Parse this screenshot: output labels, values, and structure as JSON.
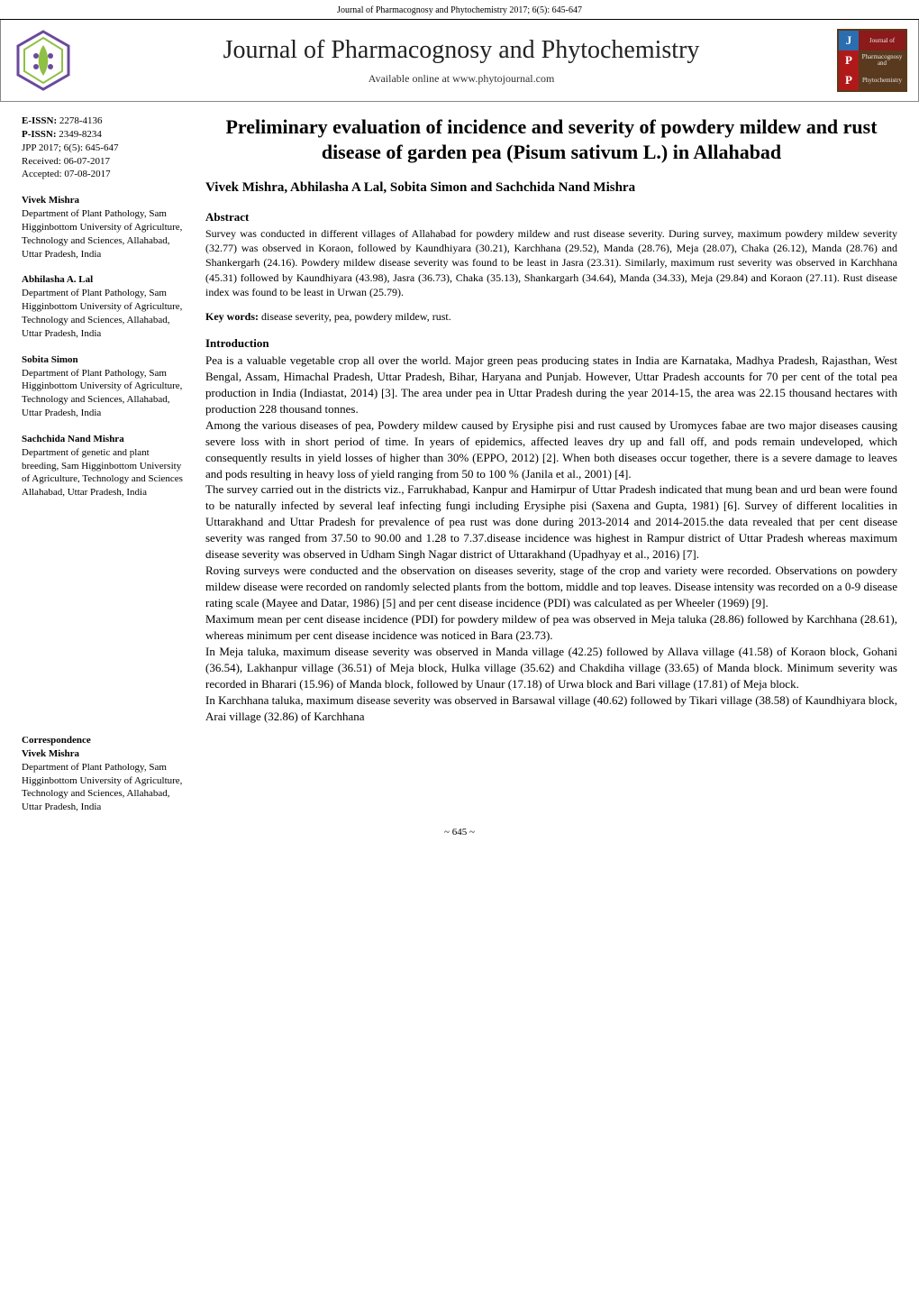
{
  "header_line": "Journal of Pharmacognosy and Phytochemistry 2017; 6(5): 645-647",
  "banner": {
    "title": "Journal of Pharmacognosy and Phytochemistry",
    "subtitle": "Available online at  www.phytojournal.com",
    "logo_colors": {
      "outer": "#6a4a9c",
      "inner": "#8fc043"
    },
    "badge": {
      "rows": [
        {
          "letter": "J",
          "letter_bg": "#2a6db0",
          "word": "Journal of",
          "word_bg": "#8b1a1a"
        },
        {
          "letter": "P",
          "letter_bg": "#b01919",
          "word": "Pharmacognosy and",
          "word_bg": "#5a3a1e"
        },
        {
          "letter": "P",
          "letter_bg": "#b01919",
          "word": "Phytochemistry",
          "word_bg": "#5a3a1e"
        }
      ]
    }
  },
  "meta": {
    "eissn_label": "E-ISSN:",
    "eissn": "2278-4136",
    "pissn_label": "P-ISSN:",
    "pissn": "2349-8234",
    "jpp_line": "JPP 2017; 6(5): 645-647",
    "received": "Received: 06-07-2017",
    "accepted": "Accepted: 07-08-2017"
  },
  "sidebar_authors": [
    {
      "name": "Vivek Mishra",
      "affil": "Department of Plant Pathology, Sam Higginbottom University of Agriculture, Technology and Sciences, Allahabad, Uttar Pradesh, India"
    },
    {
      "name": "Abhilasha A. Lal",
      "affil": "Department of Plant Pathology, Sam Higginbottom University of Agriculture, Technology and Sciences, Allahabad, Uttar Pradesh, India"
    },
    {
      "name": "Sobita Simon",
      "affil": "Department of Plant Pathology, Sam Higginbottom University of Agriculture, Technology and Sciences, Allahabad, Uttar Pradesh, India"
    },
    {
      "name": "Sachchida Nand Mishra",
      "affil": "Department of genetic and plant breeding, Sam Higginbottom University of Agriculture, Technology and Sciences Allahabad, Uttar Pradesh, India"
    }
  ],
  "correspondence": {
    "heading": "Correspondence",
    "name": "Vivek Mishra",
    "affil": "Department of Plant Pathology, Sam Higginbottom University of Agriculture, Technology and Sciences, Allahabad, Uttar Pradesh, India"
  },
  "paper_title": "Preliminary evaluation of incidence and severity of powdery mildew and rust disease of garden pea (Pisum sativum L.) in Allahabad",
  "authors_line": "Vivek Mishra, Abhilasha A Lal, Sobita Simon and Sachchida Nand Mishra",
  "abstract": {
    "heading": "Abstract",
    "body": "Survey was conducted in different villages of Allahabad for powdery mildew and rust disease severity. During survey, maximum powdery mildew severity (32.77) was observed in Koraon, followed by Kaundhiyara (30.21), Karchhana (29.52), Manda (28.76), Meja (28.07), Chaka (26.12), Manda (28.76) and Shankergarh (24.16). Powdery mildew disease severity was found to be least in Jasra (23.31). Similarly, maximum rust severity was observed in Karchhana (45.31) followed by Kaundhiyara (43.98), Jasra (36.73), Chaka (35.13), Shankargarh (34.64), Manda (34.33), Meja (29.84) and Koraon (27.11). Rust disease index was found to be least in Urwan (25.79)."
  },
  "keywords": {
    "label": "Key words:",
    "text": "disease severity, pea, powdery mildew, rust."
  },
  "introduction": {
    "heading": "Introduction",
    "paragraphs": [
      "Pea is a valuable vegetable crop all over the world. Major green peas producing states in India are Karnataka, Madhya Pradesh, Rajasthan, West Bengal, Assam, Himachal Pradesh, Uttar Pradesh, Bihar, Haryana and Punjab. However, Uttar Pradesh accounts for 70 per cent of the total pea production in India (Indiastat, 2014) [3]. The area under pea in Uttar Pradesh during the year 2014-15, the area was 22.15 thousand hectares with production 228 thousand tonnes.",
      "Among the various diseases of pea, Powdery mildew caused by Erysiphe pisi and rust caused by Uromyces fabae are two major diseases causing severe loss with in short period of time. In years of epidemics, affected leaves dry up and fall off, and pods remain undeveloped, which consequently results in yield losses of higher than 30% (EPPO, 2012) [2]. When both diseases occur together, there is a severe damage to leaves and pods resulting in heavy loss of yield ranging from 50 to 100 % (Janila et al., 2001) [4].",
      "The survey carried out in the districts viz., Farrukhabad, Kanpur and Hamirpur of Uttar Pradesh indicated that mung bean and urd bean were found to be naturally infected by several leaf infecting fungi including Erysiphe pisi (Saxena and Gupta, 1981) [6]. Survey of different localities in Uttarakhand and Uttar Pradesh for prevalence of pea rust was done during 2013-2014 and 2014-2015.the data revealed that per cent disease severity was ranged from 37.50 to 90.00 and 1.28 to 7.37.disease incidence was highest in Rampur district of Uttar Pradesh whereas maximum disease severity was observed in Udham Singh Nagar district of Uttarakhand (Upadhyay et al., 2016) [7].",
      "Roving surveys were conducted and the observation on diseases severity, stage of the crop and variety were recorded. Observations on powdery mildew disease were recorded on randomly selected plants from the bottom, middle and top leaves. Disease intensity was recorded on a 0-9 disease rating scale (Mayee and Datar, 1986) [5] and per cent disease incidence (PDI) was calculated as per Wheeler (1969) [9].",
      "Maximum mean per cent disease incidence (PDI) for powdery mildew of pea was observed in Meja taluka (28.86) followed by Karchhana (28.61), whereas minimum per cent disease incidence was noticed in Bara (23.73).",
      "In Meja taluka, maximum disease severity was observed in Manda village (42.25) followed by Allava village (41.58) of Koraon block, Gohani (36.54), Lakhanpur village (36.51) of Meja block, Hulka village (35.62) and Chakdiha village (33.65) of Manda block. Minimum severity was recorded in Bharari (15.96) of Manda block, followed by Unaur (17.18) of Urwa block and Bari village (17.81) of Meja block.",
      "In Karchhana taluka, maximum disease severity was observed in Barsawal village (40.62) followed by Tikari village (38.58) of Kaundhiyara block, Arai village (32.86) of Karchhana"
    ]
  },
  "page_number": "~ 645 ~"
}
